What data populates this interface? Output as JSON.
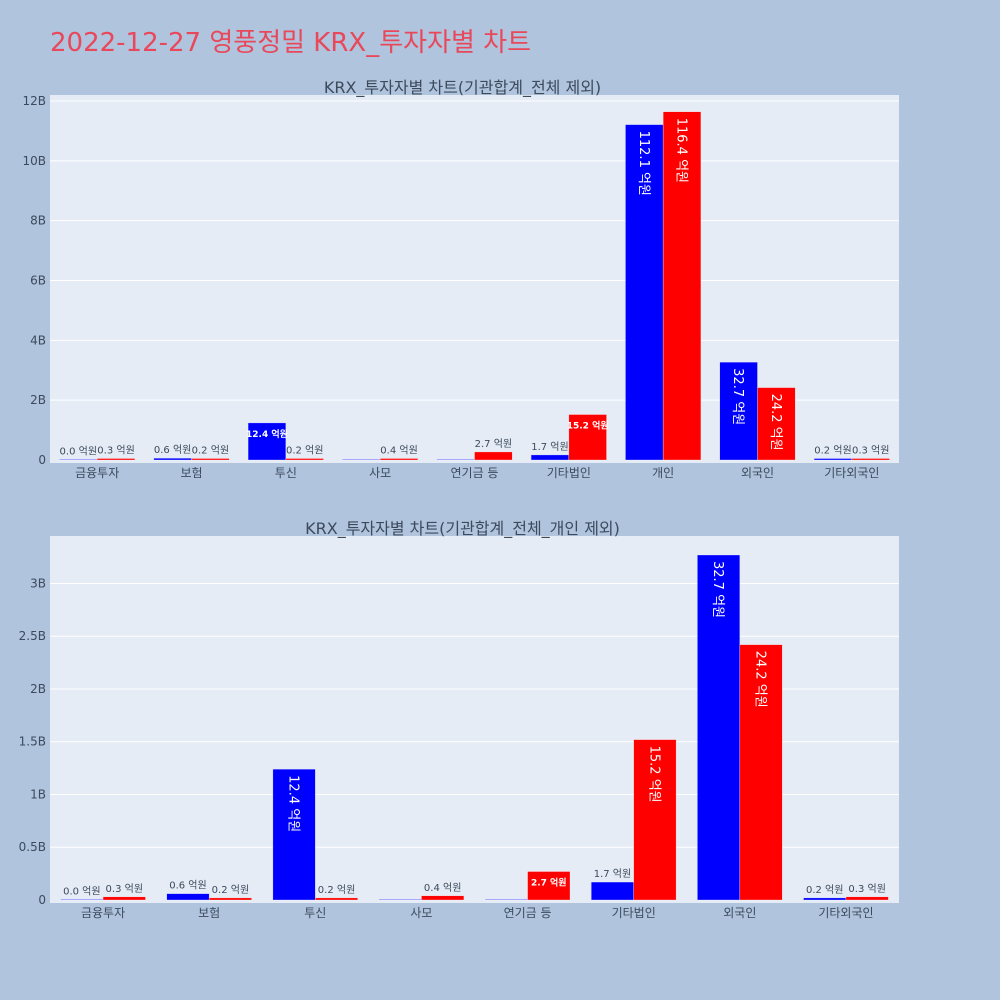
{
  "page": {
    "title": "2022-12-27 영풍정밀 KRX_투자자별 차트",
    "background": "#b0c4de",
    "plot_background": "#e5ecf6",
    "buy_color": "#0000ff",
    "sell_color": "#ff0000"
  },
  "chart_data": [
    {
      "type": "bar",
      "title": "KRX_투자자별 차트(기관합계_전체 제외)",
      "categories": [
        "금융투자",
        "보험",
        "투신",
        "사모",
        "연기금 등",
        "기타법인",
        "개인",
        "외국인",
        "기타외국인"
      ],
      "series": [
        {
          "color": "#0000ff",
          "values": [
            0,
            60000000,
            1240000000,
            0,
            0,
            170000000,
            11210000000,
            3270000000,
            20000000
          ],
          "labels": [
            "0.0 억원",
            "0.6 억원",
            "12.4 억원",
            "",
            "",
            "1.7 억원",
            "112.1 억원",
            "32.7 억원",
            "0.2 억원"
          ]
        },
        {
          "color": "#ff0000",
          "values": [
            30000000,
            20000000,
            20000000,
            40000000,
            270000000,
            1520000000,
            11640000000,
            2420000000,
            30000000
          ],
          "labels": [
            "0.3 억원",
            "0.2 억원",
            "0.2 억원",
            "0.4 억원",
            "2.7 억원",
            "15.2 억원",
            "116.4 억원",
            "24.2 억원",
            "0.3 억원"
          ]
        }
      ],
      "ylim": [
        0,
        12200000000
      ],
      "yticks": [
        0,
        2000000000,
        4000000000,
        6000000000,
        8000000000,
        10000000000,
        12000000000
      ],
      "ytick_labels": [
        "0",
        "2B",
        "4B",
        "6B",
        "8B",
        "10B",
        "12B"
      ],
      "grid": true
    },
    {
      "type": "bar",
      "title": "KRX_투자자별 차트(기관합계_전체_개인 제외)",
      "categories": [
        "금융투자",
        "보험",
        "투신",
        "사모",
        "연기금 등",
        "기타법인",
        "외국인",
        "기타외국인"
      ],
      "series": [
        {
          "color": "#0000ff",
          "values": [
            0,
            60000000,
            1240000000,
            0,
            0,
            170000000,
            3270000000,
            20000000
          ],
          "labels": [
            "0.0 억원",
            "0.6 억원",
            "12.4 억원",
            "",
            "",
            "1.7 억원",
            "32.7 억원",
            "0.2 억원"
          ]
        },
        {
          "color": "#ff0000",
          "values": [
            30000000,
            20000000,
            20000000,
            40000000,
            270000000,
            1520000000,
            2420000000,
            30000000
          ],
          "labels": [
            "0.3 억원",
            "0.2 억원",
            "0.2 억원",
            "0.4 억원",
            "2.7 억원",
            "15.2 억원",
            "24.2 억원",
            "0.3 억원"
          ]
        }
      ],
      "ylim": [
        0,
        3450000000
      ],
      "yticks": [
        0,
        500000000,
        1000000000,
        1500000000,
        2000000000,
        2500000000,
        3000000000
      ],
      "ytick_labels": [
        "0",
        "0.5B",
        "1B",
        "1.5B",
        "2B",
        "2.5B",
        "3B"
      ],
      "grid": true
    }
  ]
}
